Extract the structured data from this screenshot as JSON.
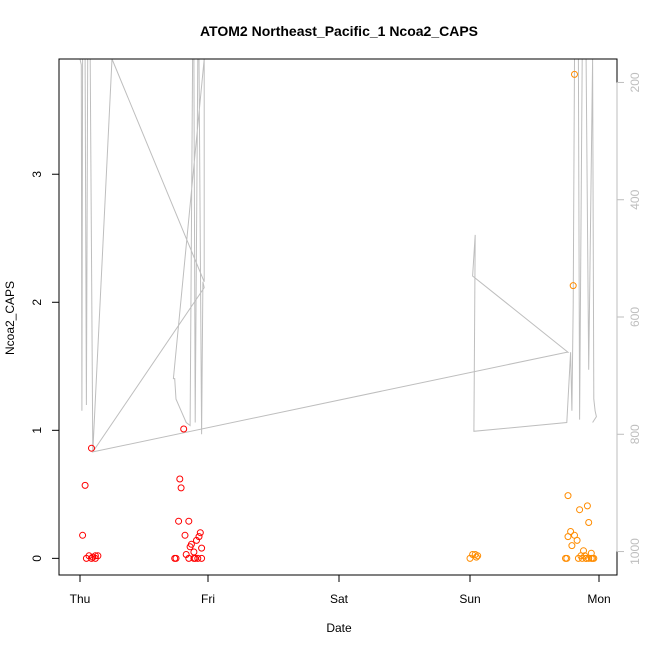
{
  "chart_data": {
    "type": "scatter",
    "title": "ATOM2 Northeast_Pacific_1 Ncoa2_CAPS",
    "xlabel": "Date",
    "ylabel": "Ncoa2_CAPS",
    "x_ticks": [
      "Thu",
      "Fri",
      "Sat",
      "Sun",
      "Mon"
    ],
    "y_ticks": [
      "0",
      "1",
      "2",
      "3"
    ],
    "y_right_ticks": [
      "200",
      "400",
      "600",
      "800",
      "1000"
    ],
    "ylim": [
      -0.13,
      3.9
    ],
    "y_right_lim": [
      1040,
      160
    ],
    "colors": {
      "red_points": "#ff0000",
      "orange_points": "#ff8c00",
      "depth_line": "#bebebe",
      "axis": "#000000",
      "right_axis": "#bebebe"
    },
    "series": [
      {
        "color": "#ff0000",
        "points": [
          [
            0.02,
            0.18
          ],
          [
            0.04,
            0.57
          ],
          [
            0.05,
            0.0
          ],
          [
            0.07,
            0.02
          ],
          [
            0.09,
            0.86
          ],
          [
            0.09,
            0.0
          ],
          [
            0.1,
            0.01
          ],
          [
            0.12,
            0.02
          ],
          [
            0.14,
            0.02
          ],
          [
            0.12,
            0.0
          ],
          [
            0.74,
            0.0
          ],
          [
            0.75,
            0.0
          ],
          [
            0.77,
            0.29
          ],
          [
            0.78,
            0.62
          ],
          [
            0.79,
            0.55
          ],
          [
            0.81,
            1.01
          ],
          [
            0.82,
            0.18
          ],
          [
            0.83,
            0.03
          ],
          [
            0.85,
            0.29
          ],
          [
            0.85,
            0.0
          ],
          [
            0.86,
            0.09
          ],
          [
            0.87,
            0.11
          ],
          [
            0.89,
            0.05
          ],
          [
            0.89,
            0.0
          ],
          [
            0.9,
            0.0
          ],
          [
            0.91,
            0.14
          ],
          [
            0.92,
            0.0
          ],
          [
            0.93,
            0.17
          ],
          [
            0.94,
            0.2
          ],
          [
            0.95,
            0.0
          ],
          [
            0.95,
            0.08
          ]
        ]
      },
      {
        "color": "#ff8c00",
        "points": [
          [
            3.0,
            0.0
          ],
          [
            3.02,
            0.03
          ],
          [
            3.04,
            0.03
          ],
          [
            3.05,
            0.01
          ],
          [
            3.06,
            0.02
          ],
          [
            3.74,
            0.0
          ],
          [
            3.75,
            0.0
          ],
          [
            3.76,
            0.17
          ],
          [
            3.76,
            0.49
          ],
          [
            3.78,
            0.21
          ],
          [
            3.79,
            0.1
          ],
          [
            3.8,
            2.13
          ],
          [
            3.81,
            3.78
          ],
          [
            3.81,
            0.18
          ],
          [
            3.83,
            0.14
          ],
          [
            3.84,
            0.0
          ],
          [
            3.85,
            0.38
          ],
          [
            3.86,
            0.02
          ],
          [
            3.87,
            0.0
          ],
          [
            3.88,
            0.06
          ],
          [
            3.89,
            0.02
          ],
          [
            3.9,
            0.0
          ],
          [
            3.91,
            0.41
          ],
          [
            3.92,
            0.28
          ],
          [
            3.92,
            0.0
          ],
          [
            3.94,
            0.0
          ],
          [
            3.95,
            0.0
          ],
          [
            3.96,
            0.0
          ],
          [
            3.94,
            0.04
          ],
          [
            3.9,
            0.0
          ]
        ]
      }
    ],
    "depth_line": [
      [
        0.0,
        160
      ],
      [
        0.01,
        170
      ],
      [
        0.015,
        760
      ],
      [
        0.02,
        160
      ],
      [
        0.04,
        160
      ],
      [
        0.05,
        750
      ],
      [
        0.06,
        160
      ],
      [
        0.08,
        160
      ],
      [
        0.1,
        830
      ],
      [
        0.25,
        160
      ],
      [
        0.97,
        540
      ],
      [
        0.97,
        160
      ],
      [
        0.73,
        705
      ],
      [
        0.74,
        705
      ],
      [
        0.75,
        740
      ],
      [
        0.79,
        760
      ],
      [
        0.83,
        780
      ],
      [
        0.86,
        785
      ],
      [
        0.88,
        160
      ],
      [
        0.89,
        160
      ],
      [
        0.9,
        780
      ],
      [
        0.92,
        160
      ],
      [
        0.93,
        160
      ],
      [
        0.95,
        800
      ],
      [
        0.96,
        540
      ],
      [
        0.97,
        550
      ],
      [
        0.1,
        830
      ],
      [
        3.75,
        660
      ],
      [
        3.76,
        660
      ],
      [
        3.02,
        530
      ],
      [
        3.04,
        460
      ],
      [
        3.03,
        795
      ],
      [
        3.75,
        780
      ],
      [
        3.78,
        660
      ],
      [
        3.79,
        760
      ],
      [
        3.8,
        580
      ],
      [
        3.81,
        160
      ],
      [
        3.84,
        160
      ],
      [
        3.85,
        775
      ],
      [
        3.87,
        160
      ],
      [
        3.9,
        160
      ],
      [
        3.92,
        690
      ],
      [
        3.95,
        160
      ],
      [
        3.96,
        740
      ],
      [
        3.97,
        760
      ],
      [
        3.98,
        770
      ],
      [
        3.95,
        780
      ]
    ]
  }
}
